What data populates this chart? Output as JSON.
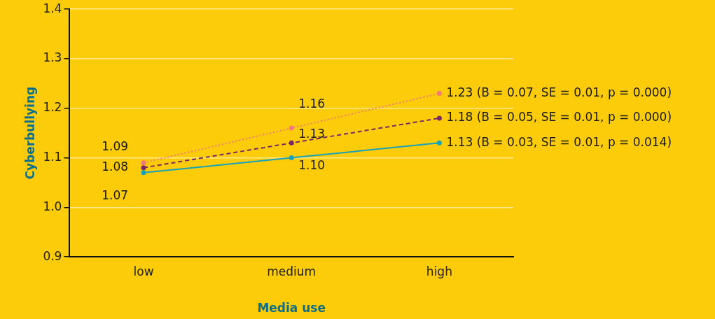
{
  "chart_data": {
    "type": "line",
    "xlabel": "Media use",
    "ylabel": "Cyberbullying",
    "categories": [
      "low",
      "medium",
      "high"
    ],
    "series": [
      {
        "color": "#f47a7a",
        "line_style": "dotted",
        "values": [
          1.09,
          1.16,
          1.23
        ],
        "value_labels": [
          "1.09",
          "1.16",
          "1.23 (B = 0.07, SE = 0.01, p = 0.000)"
        ]
      },
      {
        "color": "#7a2a63",
        "line_style": "dashed",
        "values": [
          1.08,
          1.13,
          1.18
        ],
        "value_labels": [
          "1.08",
          "1.13",
          "1.18 (B = 0.05, SE = 0.01, p = 0.000)"
        ]
      },
      {
        "color": "#16a2b8",
        "line_style": "solid",
        "values": [
          1.07,
          1.1,
          1.13
        ],
        "value_labels": [
          "1.07",
          "1.10",
          "1.13 (B = 0.03, SE = 0.01, p = 0.014)"
        ]
      }
    ],
    "ylim": [
      0.9,
      1.4
    ],
    "yticks": [
      0.9,
      {
        "value": 1,
        "label": "1.0"
      },
      1.1,
      1.2,
      1.3,
      1.4
    ],
    "grid": "y",
    "legend": false,
    "marker": "circle"
  }
}
